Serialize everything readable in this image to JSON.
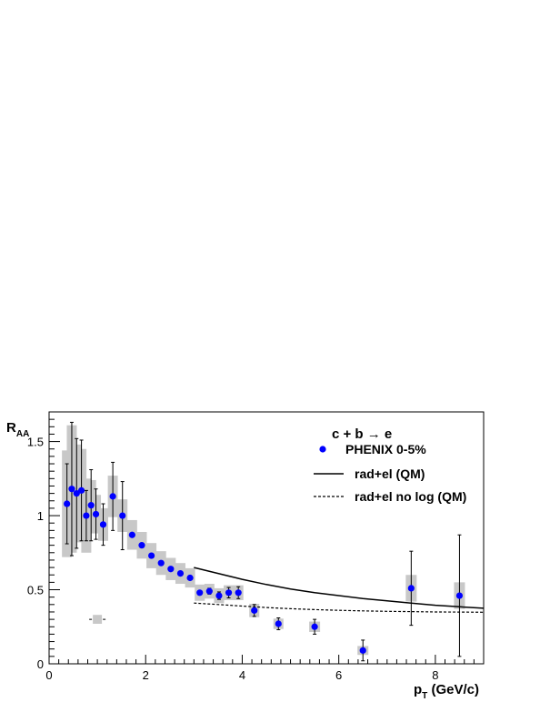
{
  "chart_data": {
    "type": "scatter",
    "title": "",
    "xlabel_main": "p",
    "xlabel_sub": "T",
    "xlabel_unit": " (GeV/c)",
    "ylabel_main": "R",
    "ylabel_sub": "AA",
    "xlim": [
      0,
      9
    ],
    "ylim": [
      0,
      1.7
    ],
    "x_ticks": [
      0,
      2,
      4,
      6,
      8
    ],
    "x_tick_labels": [
      "0",
      "2",
      "4",
      "6",
      "8"
    ],
    "y_ticks": [
      0,
      0.5,
      1,
      1.5
    ],
    "y_tick_labels": [
      "0",
      "0.5",
      "1",
      "1.5"
    ],
    "legend_title": "c + b → e",
    "legend_position": "top-right",
    "series": [
      {
        "name": "PHENIX 0-5%",
        "kind": "points",
        "color": "#0000ff",
        "points": [
          {
            "x": 0.37,
            "y": 1.08,
            "stat": 0.27,
            "sys": 0.36
          },
          {
            "x": 0.47,
            "y": 1.18,
            "stat": 0.45,
            "sys": 0.43
          },
          {
            "x": 0.57,
            "y": 1.15,
            "stat": 0.37,
            "sys": 0.33
          },
          {
            "x": 0.67,
            "y": 1.17,
            "stat": 0.34,
            "sys": 0.28
          },
          {
            "x": 0.77,
            "y": 1.0,
            "stat": 0.17,
            "sys": 0.25
          },
          {
            "x": 0.87,
            "y": 1.07,
            "stat": 0.24,
            "sys": 0.17
          },
          {
            "x": 0.97,
            "y": 1.01,
            "stat": 0.17,
            "sys": 0.13
          },
          {
            "x": 1.12,
            "y": 0.94,
            "stat": 0.14,
            "sys": 0.11
          },
          {
            "x": 1.32,
            "y": 1.13,
            "stat": 0.23,
            "sys": 0.14
          },
          {
            "x": 1.52,
            "y": 1.0,
            "stat": 0.23,
            "sys": 0.11
          },
          {
            "x": 1.72,
            "y": 0.87,
            "stat": 0.0,
            "sys": 0.1
          },
          {
            "x": 1.92,
            "y": 0.8,
            "stat": 0.0,
            "sys": 0.09
          },
          {
            "x": 2.12,
            "y": 0.73,
            "stat": 0.0,
            "sys": 0.085
          },
          {
            "x": 2.32,
            "y": 0.68,
            "stat": 0.0,
            "sys": 0.08
          },
          {
            "x": 2.52,
            "y": 0.64,
            "stat": 0.0,
            "sys": 0.075
          },
          {
            "x": 2.72,
            "y": 0.61,
            "stat": 0.0,
            "sys": 0.07
          },
          {
            "x": 2.92,
            "y": 0.58,
            "stat": 0.0,
            "sys": 0.065
          },
          {
            "x": 3.12,
            "y": 0.48,
            "stat": 0.0,
            "sys": 0.055
          },
          {
            "x": 3.32,
            "y": 0.49,
            "stat": 0.02,
            "sys": 0.05
          },
          {
            "x": 3.52,
            "y": 0.46,
            "stat": 0.025,
            "sys": 0.05
          },
          {
            "x": 3.72,
            "y": 0.48,
            "stat": 0.035,
            "sys": 0.05
          },
          {
            "x": 3.92,
            "y": 0.48,
            "stat": 0.04,
            "sys": 0.05
          },
          {
            "x": 4.25,
            "y": 0.36,
            "stat": 0.04,
            "sys": 0.045
          },
          {
            "x": 4.75,
            "y": 0.27,
            "stat": 0.04,
            "sys": 0.035
          },
          {
            "x": 5.5,
            "y": 0.25,
            "stat": 0.05,
            "sys": 0.035
          },
          {
            "x": 6.5,
            "y": 0.09,
            "stat": 0.07,
            "sys": 0.03
          },
          {
            "x": 7.5,
            "y": 0.51,
            "stat": 0.25,
            "sys": 0.09
          },
          {
            "x": 8.5,
            "y": 0.46,
            "stat": 0.41,
            "sys": 0.09
          }
        ]
      },
      {
        "name": "rad+el (QM)",
        "kind": "line",
        "style": "solid",
        "x": [
          3.0,
          3.5,
          4.0,
          4.5,
          5.0,
          5.5,
          6.0,
          6.5,
          7.0,
          7.5,
          8.0,
          8.5,
          9.0
        ],
        "values": [
          0.65,
          0.61,
          0.57,
          0.535,
          0.505,
          0.48,
          0.46,
          0.44,
          0.425,
          0.41,
          0.395,
          0.385,
          0.375
        ]
      },
      {
        "name": "rad+el no log (QM)",
        "kind": "line",
        "style": "dashed",
        "x": [
          3.0,
          3.5,
          4.0,
          4.5,
          5.0,
          5.5,
          6.0,
          6.5,
          7.0,
          7.5,
          8.0,
          8.5,
          9.0
        ],
        "values": [
          0.41,
          0.4,
          0.39,
          0.38,
          0.372,
          0.366,
          0.361,
          0.357,
          0.354,
          0.352,
          0.35,
          0.349,
          0.348
        ]
      }
    ],
    "normalization_box": {
      "x": 1.0,
      "y": 0.3,
      "half_height": 0.03
    }
  }
}
